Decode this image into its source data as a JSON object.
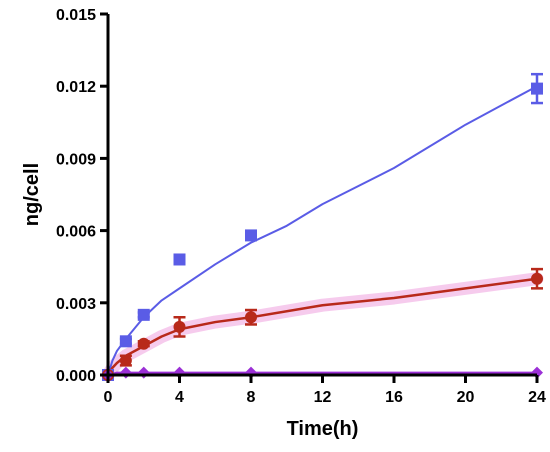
{
  "chart_data": {
    "type": "line",
    "title": "",
    "xlabel": "Time(h)",
    "ylabel": "ng/cell",
    "xlim": [
      0,
      24
    ],
    "ylim": [
      0,
      0.015
    ],
    "xticks": [
      0,
      4,
      8,
      12,
      16,
      20,
      24
    ],
    "yticks": [
      "0.000",
      "0.003",
      "0.006",
      "0.009",
      "0.012",
      "0.015"
    ],
    "grid": false,
    "legend": "none",
    "series": [
      {
        "color": "#5a5ce6",
        "marker": "square",
        "x": [
          0,
          1,
          2,
          4,
          8,
          24
        ],
        "y": [
          0.0,
          0.0014,
          0.0025,
          0.0048,
          0.0058,
          0.0119
        ],
        "yerr": [
          0.0,
          0.0001,
          0.0001,
          0.0001,
          0.0001,
          0.0006
        ],
        "fit": [
          [
            0,
            0.0
          ],
          [
            0.25,
            0.0006
          ],
          [
            0.5,
            0.001
          ],
          [
            1,
            0.0015
          ],
          [
            2,
            0.0024
          ],
          [
            3,
            0.0031
          ],
          [
            4,
            0.0036
          ],
          [
            6,
            0.0046
          ],
          [
            8,
            0.0055
          ],
          [
            10,
            0.0062
          ],
          [
            12,
            0.0071
          ],
          [
            16,
            0.0086
          ],
          [
            20,
            0.0104
          ],
          [
            24,
            0.012
          ]
        ]
      },
      {
        "color": "#b8291a",
        "marker": "circle",
        "x": [
          0,
          1,
          2,
          4,
          8,
          24
        ],
        "y": [
          0.0,
          0.0006,
          0.0013,
          0.002,
          0.0024,
          0.004
        ],
        "yerr": [
          0.0,
          0.0002,
          0.0001,
          0.0004,
          0.0003,
          0.0004
        ],
        "fit": [
          [
            0,
            0.0
          ],
          [
            0.25,
            0.0003
          ],
          [
            0.5,
            0.0005
          ],
          [
            1,
            0.0008
          ],
          [
            2,
            0.0012
          ],
          [
            3,
            0.0016
          ],
          [
            4,
            0.0019
          ],
          [
            6,
            0.0022
          ],
          [
            8,
            0.0024
          ],
          [
            12,
            0.0029
          ],
          [
            16,
            0.0032
          ],
          [
            20,
            0.0036
          ],
          [
            24,
            0.004
          ]
        ]
      },
      {
        "color": "#9b30d6",
        "marker": "diamond",
        "x": [
          0,
          1,
          2,
          4,
          8,
          24
        ],
        "y": [
          0.0,
          0.0001,
          0.0001,
          0.0001,
          0.0001,
          0.0001
        ],
        "yerr": [
          0.0,
          0.0,
          0.0,
          0.0,
          0.0,
          0.0
        ],
        "fit": [
          [
            0,
            0.0
          ],
          [
            0.5,
            0.0001
          ],
          [
            1,
            0.0001
          ],
          [
            24,
            0.0001
          ]
        ]
      }
    ]
  }
}
